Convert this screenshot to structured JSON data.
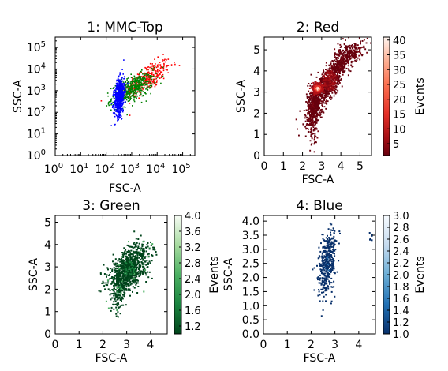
{
  "chart_data": [
    {
      "type": "scatter",
      "title": "1: MMC-Top",
      "xlabel": "FSC-A",
      "ylabel": "SSC-A",
      "xscale": "log",
      "yscale": "log",
      "xlim": [
        1,
        300000
      ],
      "ylim": [
        1,
        300000
      ],
      "xtick_values": [
        1,
        10,
        100,
        1000,
        10000,
        100000
      ],
      "xtick_labels": [
        "10^0",
        "10^1",
        "10^2",
        "10^3",
        "10^4",
        "10^5"
      ],
      "ytick_values": [
        1,
        10,
        100,
        1000,
        10000,
        100000
      ],
      "ytick_labels": [
        "10^0",
        "10^1",
        "10^2",
        "10^3",
        "10^4",
        "10^5"
      ],
      "series": [
        {
          "color": "#ff0000",
          "cx": 3.6,
          "cy": 3.6,
          "sx": 0.45,
          "sy": 0.42,
          "n": 320,
          "corr": 0.7
        },
        {
          "color": "#008000",
          "cx": 3.0,
          "cy": 3.1,
          "sx": 0.4,
          "sy": 0.35,
          "n": 500,
          "corr": 0.6
        },
        {
          "color": "#0000ff",
          "cx": 2.5,
          "cy": 2.75,
          "sx": 0.1,
          "sy": 0.45,
          "n": 600,
          "corr": 0.3
        }
      ],
      "grid": false
    },
    {
      "type": "heatmap",
      "title": "2: Red",
      "xlabel": "FSC-A",
      "ylabel": "SSC-A",
      "xlim": [
        0,
        5.6
      ],
      "ylim": [
        0,
        5.6
      ],
      "xticks": [
        "0",
        "1",
        "2",
        "3",
        "4",
        "5"
      ],
      "yticks": [
        "0",
        "1",
        "2",
        "3",
        "4",
        "5"
      ],
      "colormap": "reds",
      "colorbar_label": "Events",
      "colorbar_range": [
        1,
        41
      ],
      "colorbar_ticks": [
        "5",
        "10",
        "15",
        "20",
        "25",
        "30",
        "35",
        "40"
      ],
      "density_peak": {
        "x": 2.75,
        "y": 3.2
      }
    },
    {
      "type": "heatmap",
      "title": "3: Green",
      "xlabel": "FSC-A",
      "ylabel": "SSC-A",
      "xlim": [
        0,
        4.7
      ],
      "ylim": [
        0,
        5.3
      ],
      "xticks": [
        "0",
        "1",
        "2",
        "3",
        "4"
      ],
      "yticks": [
        "0",
        "1",
        "2",
        "3",
        "4",
        "5"
      ],
      "colormap": "greens",
      "colorbar_label": "Events",
      "colorbar_range": [
        1,
        4
      ],
      "colorbar_ticks": [
        "1.2",
        "1.6",
        "2.0",
        "2.4",
        "2.8",
        "3.2",
        "3.6",
        "4.0"
      ]
    },
    {
      "type": "heatmap",
      "title": "4: Blue",
      "xlabel": "FSC-A",
      "ylabel": "SSC-A",
      "xlim": [
        0,
        4.7
      ],
      "ylim": [
        0,
        4.2
      ],
      "xticks": [
        "0",
        "1",
        "2",
        "3",
        "4"
      ],
      "yticks": [
        "0.0",
        "0.5",
        "1.0",
        "1.5",
        "2.0",
        "2.5",
        "3.0",
        "3.5",
        "4.0"
      ],
      "colormap": "blues",
      "colorbar_label": "Events",
      "colorbar_range": [
        1,
        3
      ],
      "colorbar_ticks": [
        "1.0",
        "1.2",
        "1.4",
        "1.6",
        "1.8",
        "2.0",
        "2.2",
        "2.4",
        "2.6",
        "2.8",
        "3.0"
      ]
    }
  ]
}
